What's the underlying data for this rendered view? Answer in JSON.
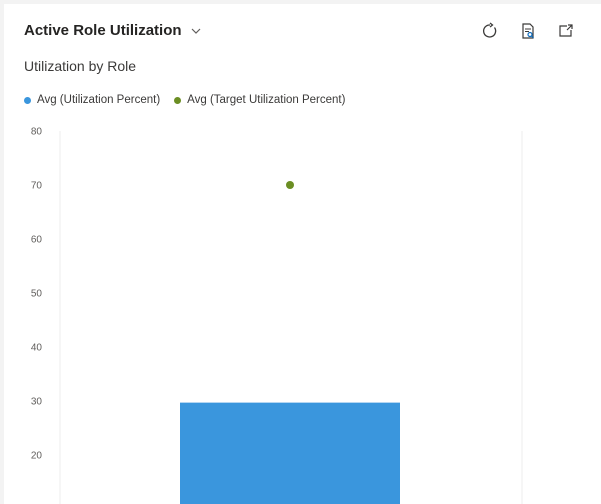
{
  "header": {
    "title": "Active Role Utilization",
    "subtitle": "Utilization by Role",
    "actions": [
      {
        "name": "refresh-icon"
      },
      {
        "name": "view-records-icon"
      },
      {
        "name": "expand-icon"
      }
    ]
  },
  "colors": {
    "utilization": "#3a96dd",
    "target": "#6b8e23",
    "grid": "#eeeeee"
  },
  "chart_data": {
    "type": "bar",
    "categories": [
      ""
    ],
    "series": [
      {
        "name": "Avg (Utilization Percent)",
        "values": [
          29.7
        ],
        "mark": "bar"
      },
      {
        "name": "Avg (Target Utilization Percent)",
        "values": [
          70
        ],
        "mark": "point"
      }
    ],
    "y_ticks": [
      80,
      70,
      60,
      50,
      40,
      30,
      20
    ],
    "ylim": [
      15,
      80
    ],
    "grid": false,
    "legend": "top-left"
  }
}
